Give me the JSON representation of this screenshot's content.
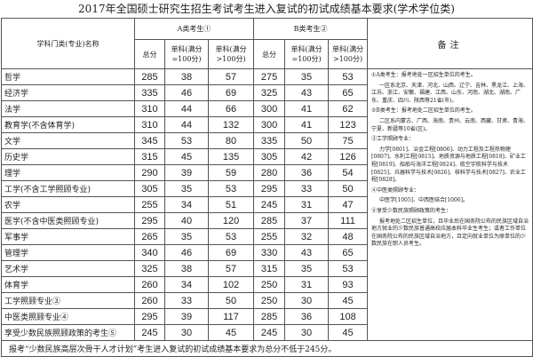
{
  "title": "2017年全国硕士研究生招生考试考生进入复试的初试成绩基本要求(学术学位类)",
  "table": {
    "header": {
      "name": "学科门类(专业)名称",
      "group_a": "A类考生①",
      "group_b": "B类考生②",
      "notes": "备注"
    },
    "subheader": [
      "总分",
      "单科(满分=100分)",
      "单科(满分>100分)",
      "总分",
      "单科(满分=100分)",
      "单科(满分>100分)"
    ],
    "rows": [
      [
        "哲学",
        285,
        38,
        57,
        275,
        35,
        53
      ],
      [
        "经济学",
        335,
        46,
        69,
        325,
        43,
        65
      ],
      [
        "法学",
        310,
        44,
        66,
        300,
        41,
        62
      ],
      [
        "教育学(不含体育学)",
        310,
        44,
        132,
        300,
        41,
        123
      ],
      [
        "文学",
        345,
        53,
        80,
        335,
        50,
        75
      ],
      [
        "历史学",
        315,
        45,
        135,
        305,
        42,
        126
      ],
      [
        "理学",
        290,
        39,
        59,
        280,
        36,
        54
      ],
      [
        "工学(不含工学照顾专业)",
        305,
        35,
        53,
        295,
        33,
        50
      ],
      [
        "农学",
        255,
        34,
        51,
        245,
        31,
        47
      ],
      [
        "医学(不含中医类照顾专业)",
        295,
        40,
        120,
        285,
        37,
        111
      ],
      [
        "军事学",
        265,
        35,
        53,
        255,
        32,
        48
      ],
      [
        "管理学",
        340,
        46,
        69,
        330,
        43,
        65
      ],
      [
        "艺术学",
        325,
        38,
        57,
        315,
        35,
        53
      ],
      [
        "体育学",
        260,
        34,
        102,
        250,
        31,
        93
      ],
      [
        "工学照顾专业③",
        260,
        33,
        50,
        250,
        30,
        45
      ],
      [
        "中医类照顾专业④",
        295,
        39,
        117,
        285,
        36,
        108
      ],
      [
        "享受少数民族照顾政策的考生⑤",
        245,
        30,
        45,
        245,
        30,
        45
      ]
    ],
    "notes": [
      "①A类考生：报考地处一区招生单位的考生。",
      "一区系北京、天津、河北、山西、辽宁、吉林、黑龙江、上海、江苏、浙江、安徽、福建、江西、山东、河南、湖北、湖南、广东、重庆、四川、陕西等21省(市)。",
      "②B类考生：报考地处二区招生单位的考生。",
      "二区系内蒙古、广西、海南、贵州、云南、西藏、甘肃、青海、宁夏、新疆等10省(区)。",
      "③工学照顾专业：",
      "力学[0801]、冶金工程[0806]、动力工程及工程热物理[0807]、水利工程[0815]、地质资源与地质工程[0818]、矿业工程[0819]、船舶与海洋工程[0824]、航空宇航科学与技术[0825]、兵器科学与技术[0826]、核科学与技术[0827]、农业工程[0828]。",
      "④中医类照顾专业：",
      "中医学[1005]、中西医结合[1006]。",
      "⑤享受少数民族照顾政策的考生：",
      "报考地处二区招生单位，且毕业后在国务院公布的民族区域自治地方就业的少数民族普通高校应届本科毕业生考生；或者工作单位在国务院公布的民族区域自治地方，且定向就业单位为原单位的少数民族在职人员考生。"
    ],
    "footer": "报考“少数民族高层次骨干人才计划”考生进入复试的初试成绩基本要求为总分不低于245分。"
  }
}
